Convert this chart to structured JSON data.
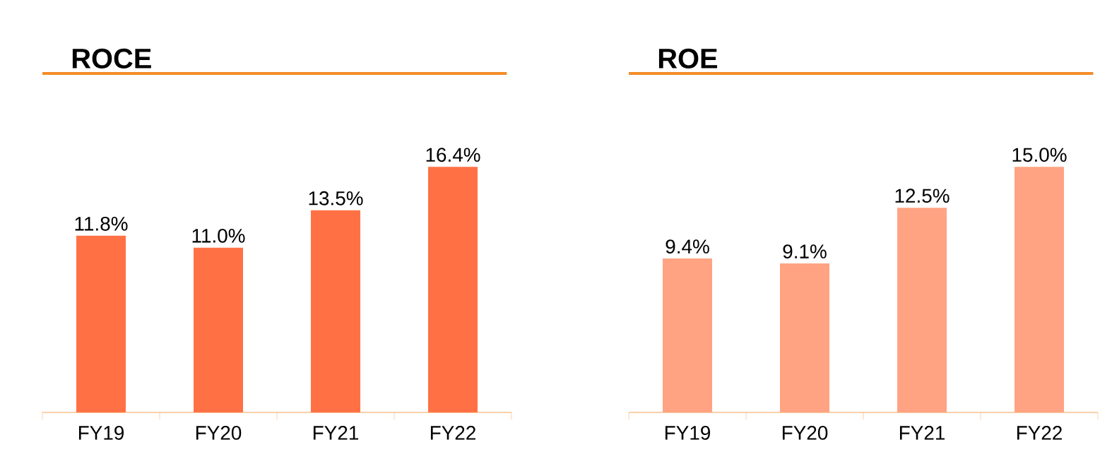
{
  "chart_data": [
    {
      "type": "bar",
      "title": "ROCE",
      "categories": [
        "FY19",
        "FY20",
        "FY21",
        "FY22"
      ],
      "values": [
        11.8,
        11.0,
        13.5,
        16.4
      ],
      "value_labels": [
        "11.8%",
        "11.0%",
        "13.5%",
        "16.4%"
      ],
      "color": "#ff7145"
    },
    {
      "type": "bar",
      "title": "ROE",
      "categories": [
        "FY19",
        "FY20",
        "FY21",
        "FY22"
      ],
      "values": [
        9.4,
        9.1,
        12.5,
        15.0
      ],
      "value_labels": [
        "9.4%",
        "9.1%",
        "12.5%",
        "15.0%"
      ],
      "color": "#ffa382"
    }
  ]
}
